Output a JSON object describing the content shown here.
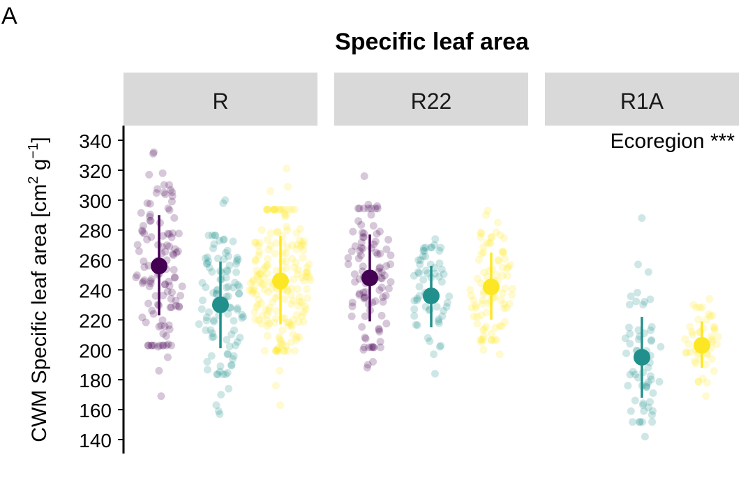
{
  "panel_letter": "A",
  "chart_data": {
    "type": "scatter",
    "title": "Specific leaf area",
    "ylabel": "CWM Specific leaf area [cm",
    "ylabel_sup1": "2",
    "ylabel_mid": " g",
    "ylabel_sup2": "−1",
    "ylabel_end": "]",
    "ylim": [
      140,
      350
    ],
    "yticks": [
      140,
      160,
      180,
      200,
      220,
      240,
      260,
      280,
      300,
      320,
      340
    ],
    "grid": false,
    "legend": "none",
    "annotation": "Ecoregion ***",
    "group_colors": [
      "#440154",
      "#21908C",
      "#FDE725"
    ],
    "panels": [
      {
        "label": "R",
        "groups": [
          {
            "mean": 256,
            "low": 223,
            "high": 290,
            "n": 110,
            "outliers": [
              169,
              186,
              195,
              202,
              317,
              318,
              331,
              332
            ]
          },
          {
            "mean": 230,
            "low": 201,
            "high": 259,
            "n": 100,
            "outliers": [
              157,
              159,
              163,
              170,
              174,
              192,
              298,
              300
            ]
          },
          {
            "mean": 246,
            "low": 217,
            "high": 276,
            "n": 190,
            "outliers": [
              163,
              176,
              186,
              306,
              309,
              321
            ]
          }
        ]
      },
      {
        "label": "R22",
        "groups": [
          {
            "mean": 248,
            "low": 219,
            "high": 277,
            "n": 95,
            "outliers": [
              188,
              190,
              192,
              200,
              296,
              297,
              316
            ]
          },
          {
            "mean": 236,
            "low": 215,
            "high": 256,
            "n": 55,
            "outliers": [
              184,
              197,
              202,
              266,
              270,
              274
            ]
          },
          {
            "mean": 242,
            "low": 220,
            "high": 265,
            "n": 85,
            "outliers": [
              197,
              200,
              205,
              285,
              290,
              293
            ]
          }
        ]
      },
      {
        "label": "R1A",
        "groups": [
          {
            "mean": null,
            "low": null,
            "high": null,
            "n": 0,
            "outliers": []
          },
          {
            "mean": 195,
            "low": 168,
            "high": 222,
            "n": 55,
            "outliers": [
              142,
              159,
              163,
              252,
              257,
              288
            ]
          },
          {
            "mean": 203,
            "low": 188,
            "high": 219,
            "n": 45,
            "outliers": [
              169,
              178,
              224,
              230,
              234
            ]
          }
        ]
      }
    ]
  }
}
